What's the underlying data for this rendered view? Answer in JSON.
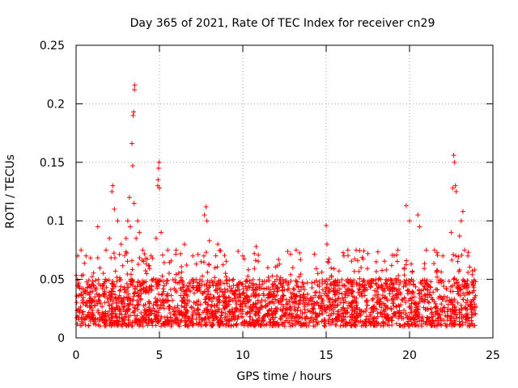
{
  "chart_data": {
    "type": "scatter",
    "title": "Day 365 of 2021, Rate Of TEC Index for receiver cn29",
    "xlabel": "GPS time / hours",
    "ylabel": "ROTI / TECUs",
    "xlim": [
      0,
      25
    ],
    "ylim": [
      0,
      0.25
    ],
    "xticks": [
      0,
      5,
      10,
      15,
      20,
      25
    ],
    "yticks": [
      0,
      0.05,
      0.1,
      0.15,
      0.2,
      0.25
    ],
    "xtick_labels": [
      "0",
      "5",
      "10",
      "15",
      "20",
      "25"
    ],
    "ytick_labels": [
      "0",
      "0.05",
      "0.1",
      "0.15",
      "0.2",
      "0.25"
    ],
    "grid": true,
    "marker": "+",
    "series_color": "#ff0000",
    "baseline_band": {
      "x_range": [
        0,
        24
      ],
      "typical_min": 0.01,
      "typical_max": 0.05,
      "scattered_upper": 0.075
    },
    "outliers": [
      [
        0.1,
        0.07
      ],
      [
        0.3,
        0.075
      ],
      [
        0.6,
        0.07
      ],
      [
        1.3,
        0.095
      ],
      [
        1.8,
        0.075
      ],
      [
        2.0,
        0.085
      ],
      [
        2.15,
        0.125
      ],
      [
        2.2,
        0.13
      ],
      [
        2.3,
        0.11
      ],
      [
        2.5,
        0.1
      ],
      [
        2.7,
        0.08
      ],
      [
        3.0,
        0.085
      ],
      [
        3.1,
        0.1
      ],
      [
        3.2,
        0.12
      ],
      [
        3.25,
        0.095
      ],
      [
        3.35,
        0.166
      ],
      [
        3.4,
        0.147
      ],
      [
        3.42,
        0.19
      ],
      [
        3.45,
        0.193
      ],
      [
        3.48,
        0.115
      ],
      [
        3.5,
        0.212
      ],
      [
        3.52,
        0.216
      ],
      [
        3.6,
        0.085
      ],
      [
        3.7,
        0.1
      ],
      [
        3.8,
        0.09
      ],
      [
        4.0,
        0.075
      ],
      [
        4.5,
        0.07
      ],
      [
        4.8,
        0.085
      ],
      [
        4.9,
        0.13
      ],
      [
        4.92,
        0.135
      ],
      [
        4.95,
        0.145
      ],
      [
        4.98,
        0.15
      ],
      [
        5.0,
        0.128
      ],
      [
        5.1,
        0.09
      ],
      [
        5.5,
        0.075
      ],
      [
        6.0,
        0.075
      ],
      [
        6.5,
        0.08
      ],
      [
        7.0,
        0.07
      ],
      [
        7.5,
        0.065
      ],
      [
        7.7,
        0.105
      ],
      [
        7.8,
        0.112
      ],
      [
        7.85,
        0.1
      ],
      [
        8.0,
        0.083
      ],
      [
        8.5,
        0.08
      ],
      [
        10.0,
        0.07
      ],
      [
        10.8,
        0.078
      ],
      [
        11.5,
        0.06
      ],
      [
        12.2,
        0.063
      ],
      [
        13.0,
        0.06
      ],
      [
        13.2,
        0.075
      ],
      [
        14.5,
        0.055
      ],
      [
        15.0,
        0.096
      ],
      [
        15.05,
        0.08
      ],
      [
        15.1,
        0.065
      ],
      [
        16.3,
        0.075
      ],
      [
        16.8,
        0.075
      ],
      [
        17.5,
        0.072
      ],
      [
        18.0,
        0.065
      ],
      [
        19.3,
        0.075
      ],
      [
        19.8,
        0.113
      ],
      [
        20.0,
        0.1
      ],
      [
        20.5,
        0.105
      ],
      [
        20.6,
        0.095
      ],
      [
        21.0,
        0.075
      ],
      [
        21.5,
        0.075
      ],
      [
        22.0,
        0.07
      ],
      [
        22.5,
        0.09
      ],
      [
        22.6,
        0.128
      ],
      [
        22.65,
        0.156
      ],
      [
        22.7,
        0.15
      ],
      [
        22.75,
        0.13
      ],
      [
        22.8,
        0.125
      ],
      [
        23.0,
        0.087
      ],
      [
        23.1,
        0.1
      ],
      [
        23.2,
        0.108
      ],
      [
        23.3,
        0.075
      ],
      [
        23.5,
        0.07
      ]
    ]
  }
}
